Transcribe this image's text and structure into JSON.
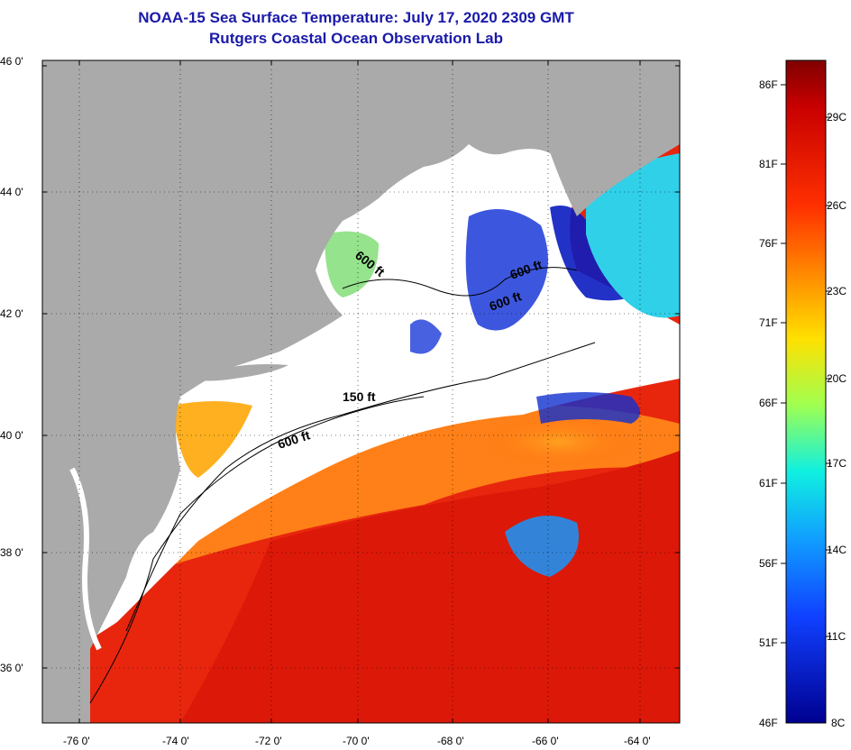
{
  "title": {
    "line1": "NOAA-15 Sea Surface Temperature:  July 17, 2020 2309 GMT",
    "line2": "Rutgers Coastal Ocean Observation Lab"
  },
  "axes": {
    "lat_labels": [
      "46 0'",
      "44 0'",
      "42 0'",
      "40 0'",
      "38 0'",
      "36 0'"
    ],
    "lon_labels": [
      "-76 0'",
      "-74 0'",
      "-72 0'",
      "-70 0'",
      "-68 0'",
      "-66 0'",
      "-64 0'"
    ]
  },
  "contours": {
    "labels": [
      "600 ft",
      "600 ft",
      "600 ft",
      "150 ft",
      "600 ft"
    ]
  },
  "colorbar": {
    "fahrenheit": [
      "86F",
      "81F",
      "76F",
      "71F",
      "66F",
      "61F",
      "56F",
      "51F",
      "46F"
    ],
    "celsius": [
      "29C",
      "26C",
      "23C",
      "20C",
      "17C",
      "14C",
      "11C",
      "8C"
    ]
  },
  "colors": {
    "land": "#aaaaaa",
    "cloud": "#ffffff",
    "title": "#1a1aa8",
    "warm": "#e8200c",
    "cold": "#0010c8"
  }
}
